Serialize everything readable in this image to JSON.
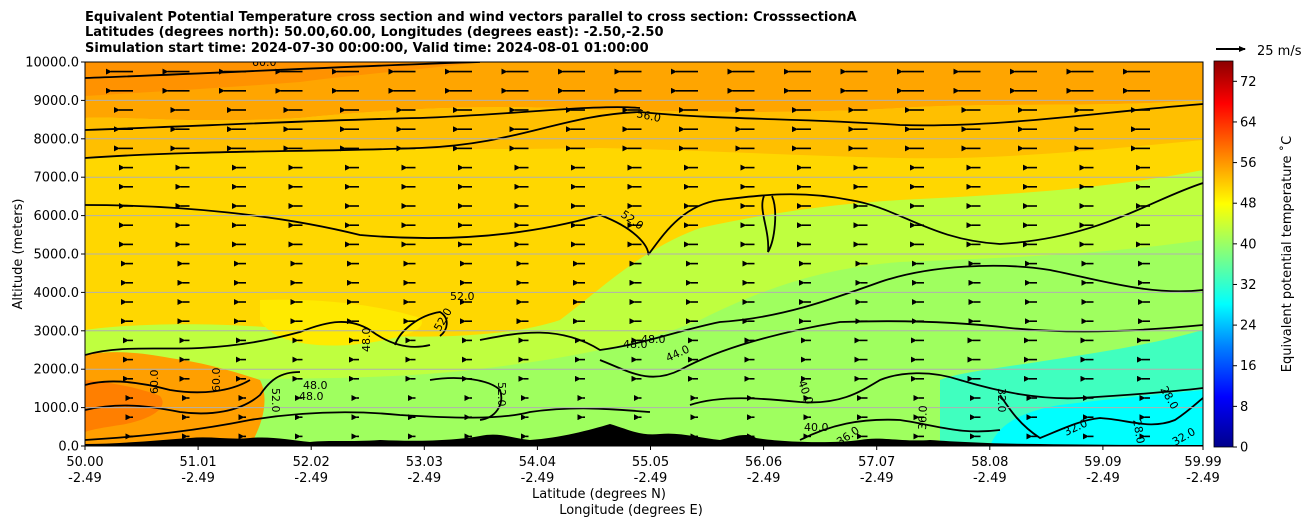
{
  "chart_data": {
    "type": "heatmap",
    "title_lines": [
      "Equivalent Potential Temperature cross section and wind vectors parallel to cross section: CrosssectionA",
      "Latitudes (degrees north): 50.00,60.00, Longitudes (degrees east): -2.50,-2.50",
      "Simulation start time: 2024-07-30 00:00:00, Valid time: 2024-08-01 01:00:00"
    ],
    "ylabel": "Altitude (meters)",
    "xlabel_lines": [
      "Latitude (degrees N)",
      "Longitude (degrees E)"
    ],
    "colorbar_label": "Equivalent potential temperature ˚C",
    "xlim": [
      50.0,
      59.99
    ],
    "ylim": [
      0,
      10000
    ],
    "x_ticks": [
      {
        "lat": "50.00",
        "lon": "-2.49"
      },
      {
        "lat": "51.01",
        "lon": "-2.49"
      },
      {
        "lat": "52.02",
        "lon": "-2.49"
      },
      {
        "lat": "53.03",
        "lon": "-2.49"
      },
      {
        "lat": "54.04",
        "lon": "-2.49"
      },
      {
        "lat": "55.05",
        "lon": "-2.49"
      },
      {
        "lat": "56.06",
        "lon": "-2.49"
      },
      {
        "lat": "57.07",
        "lon": "-2.49"
      },
      {
        "lat": "58.08",
        "lon": "-2.49"
      },
      {
        "lat": "59.09",
        "lon": "-2.49"
      },
      {
        "lat": "59.99",
        "lon": "-2.49"
      }
    ],
    "y_ticks": [
      "0.0",
      "1000.0",
      "2000.0",
      "3000.0",
      "4000.0",
      "5000.0",
      "6000.0",
      "7000.0",
      "8000.0",
      "9000.0",
      "10000.0"
    ],
    "y_tick_values": [
      0,
      1000,
      2000,
      3000,
      4000,
      5000,
      6000,
      7000,
      8000,
      9000,
      10000
    ],
    "grid": "horizontal",
    "colorbar": {
      "range": [
        0,
        76
      ],
      "ticks": [
        "0",
        "8",
        "16",
        "24",
        "32",
        "40",
        "48",
        "56",
        "64",
        "72"
      ],
      "tick_values": [
        0,
        8,
        16,
        24,
        32,
        40,
        48,
        56,
        64,
        72
      ],
      "colormap": [
        "#00008b",
        "#0000ff",
        "#0080ff",
        "#00ffff",
        "#80ff80",
        "#ffff00",
        "#ff8000",
        "#ff0000",
        "#8b0000"
      ]
    },
    "wind_reference": {
      "label": "25 m/s",
      "value": 25
    },
    "contour_labels": [
      "60.0",
      "56.0",
      "52.0",
      "52.0",
      "52.0",
      "48.0",
      "48.0",
      "48.0",
      "48.0",
      "44.0",
      "44.0",
      "40.0",
      "40.0",
      "36.0",
      "36.0",
      "32.0",
      "32.0",
      "32.0",
      "28.0",
      "28.0",
      "60.0",
      "60.0",
      "52.0",
      "52.0",
      "48.0"
    ],
    "contour_levels": [
      28,
      32,
      36,
      40,
      44,
      48,
      52,
      56,
      60
    ],
    "shading_regions": [
      {
        "name": "upper-orange",
        "value": 57,
        "ymin": 8000,
        "ymax": 10000
      },
      {
        "name": "upper-yellow",
        "value": 53,
        "ymin": 6000,
        "ymax": 8300
      },
      {
        "name": "mid-yellow",
        "value": 50,
        "ymin": 2000,
        "ymax": 6200
      },
      {
        "name": "low-green",
        "value": 42,
        "ymin": 0,
        "ymax": 3500
      },
      {
        "name": "low-cyan",
        "value": 32,
        "xmin": 58.0,
        "ymin": 0,
        "ymax": 1700
      },
      {
        "name": "low-orange",
        "value": 58,
        "xmax": 51.9,
        "ymin": 0,
        "ymax": 2100
      }
    ],
    "colors": {
      "line": "#000000",
      "terrain": "#000000",
      "grid": "#b0b0b0"
    }
  }
}
